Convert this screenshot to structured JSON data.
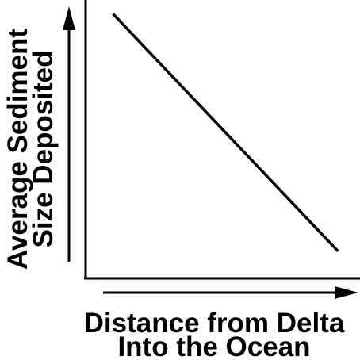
{
  "chart_data": {
    "type": "line",
    "title": "",
    "xlabel_lines": [
      "Distance from Delta",
      "Into the Ocean"
    ],
    "ylabel_lines": [
      "Average Sediment",
      "Size Deposited"
    ],
    "x_ticks": [],
    "y_ticks": [],
    "xlim": [
      0,
      1
    ],
    "ylim": [
      0,
      1
    ],
    "grid": false,
    "legend": "none",
    "series": [
      {
        "x": [
          0.1,
          0.92
        ],
        "y": [
          0.95,
          0.1
        ]
      }
    ],
    "colors": {
      "line": "#000000",
      "axis": "#000000",
      "background": "#ffffff"
    }
  }
}
